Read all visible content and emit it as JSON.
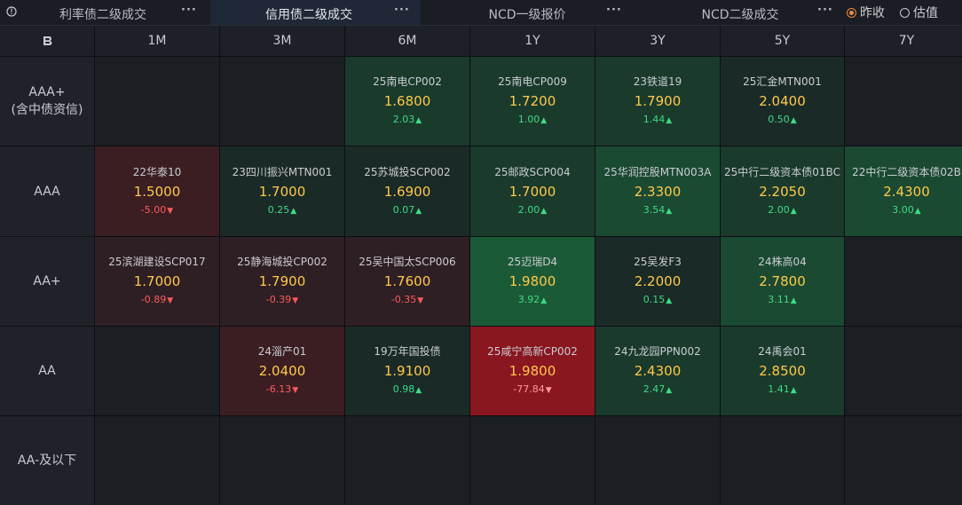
{
  "topbar": {
    "tabs": [
      {
        "label": "利率债二级成交",
        "more": "···"
      },
      {
        "label": "信用债二级成交",
        "more": "···"
      },
      {
        "label": "NCD一级报价",
        "more": "···"
      },
      {
        "label": "NCD二级成交",
        "more": "···"
      }
    ],
    "active_tab": 1,
    "radio": [
      {
        "label": "昨收",
        "checked": true
      },
      {
        "label": "估值",
        "checked": false
      }
    ]
  },
  "grid": {
    "corner_icon": "B",
    "columns": [
      "1M",
      "3M",
      "6M",
      "1Y",
      "3Y",
      "5Y",
      "7Y"
    ],
    "rows": [
      {
        "label_lines": [
          "AAA+",
          "(含中债资信)"
        ]
      },
      {
        "label_lines": [
          "AAA"
        ]
      },
      {
        "label_lines": [
          "AA+"
        ]
      },
      {
        "label_lines": [
          "AA"
        ]
      },
      {
        "label_lines": [
          "AA-及以下"
        ]
      }
    ],
    "cells": [
      [
        null,
        null,
        {
          "name": "25南电CP002",
          "price": "1.6800",
          "change": "2.03",
          "dir": "up",
          "tone": "c-g2"
        },
        {
          "name": "25南电CP009",
          "price": "1.7200",
          "change": "1.00",
          "dir": "up",
          "tone": "c-g2"
        },
        {
          "name": "23铁道19",
          "price": "1.7900",
          "change": "1.44",
          "dir": "up",
          "tone": "c-g2"
        },
        {
          "name": "25汇金MTN001",
          "price": "2.0400",
          "change": "0.50",
          "dir": "up",
          "tone": "c-g1"
        },
        null
      ],
      [
        {
          "name": "22华泰10",
          "price": "1.5000",
          "change": "-5.00",
          "dir": "down",
          "tone": "c-r2"
        },
        {
          "name": "23四川振兴MTN001",
          "price": "1.7000",
          "change": "0.25",
          "dir": "up",
          "tone": "c-g1"
        },
        {
          "name": "25苏城投SCP002",
          "price": "1.6900",
          "change": "0.07",
          "dir": "up",
          "tone": "c-g1"
        },
        {
          "name": "25邮政SCP004",
          "price": "1.7000",
          "change": "2.00",
          "dir": "up",
          "tone": "c-g2"
        },
        {
          "name": "25华润控股MTN003A",
          "price": "2.3300",
          "change": "3.54",
          "dir": "up",
          "tone": "c-g3"
        },
        {
          "name": "25中行二级资本债01BC",
          "price": "2.2050",
          "change": "2.00",
          "dir": "up",
          "tone": "c-g2"
        },
        {
          "name": "22中行二级资本债02B",
          "price": "2.4300",
          "change": "3.00",
          "dir": "up",
          "tone": "c-g3"
        }
      ],
      [
        {
          "name": "25滨湖建设SCP017",
          "price": "1.7000",
          "change": "-0.89",
          "dir": "down",
          "tone": "c-r1"
        },
        {
          "name": "25静海城投CP002",
          "price": "1.7900",
          "change": "-0.39",
          "dir": "down",
          "tone": "c-r1"
        },
        {
          "name": "25吴中国太SCP006",
          "price": "1.7600",
          "change": "-0.35",
          "dir": "down",
          "tone": "c-r1"
        },
        {
          "name": "25迈瑞D4",
          "price": "1.9800",
          "change": "3.92",
          "dir": "up",
          "tone": "c-g4"
        },
        {
          "name": "25吴发F3",
          "price": "2.2000",
          "change": "0.15",
          "dir": "up",
          "tone": "c-g1"
        },
        {
          "name": "24株高04",
          "price": "2.7800",
          "change": "3.11",
          "dir": "up",
          "tone": "c-g3"
        },
        null
      ],
      [
        null,
        {
          "name": "24淄产01",
          "price": "2.0400",
          "change": "-6.13",
          "dir": "down",
          "tone": "c-r2"
        },
        {
          "name": "19万年国投债",
          "price": "1.9100",
          "change": "0.98",
          "dir": "up",
          "tone": "c-g1"
        },
        {
          "name": "25咸宁高新CP002",
          "price": "1.9800",
          "change": "-77.84",
          "dir": "down",
          "tone": "c-r3"
        },
        {
          "name": "24九龙园PPN002",
          "price": "2.4300",
          "change": "2.47",
          "dir": "up",
          "tone": "c-g2"
        },
        {
          "name": "24禹会01",
          "price": "2.8500",
          "change": "1.41",
          "dir": "up",
          "tone": "c-g2"
        },
        null
      ],
      [
        null,
        null,
        null,
        null,
        null,
        null,
        null
      ]
    ]
  },
  "icons": {
    "info": "info-circle-icon",
    "more": "more-dots-icon",
    "up": "up-triangle-icon",
    "down": "down-triangle-icon",
    "logo": "brand-b-icon"
  },
  "colors": {
    "price": "#ffc94a",
    "up": "#3ddc84",
    "down": "#ff5b5b",
    "radio_accent": "#f08c3c",
    "active_tab_bg": "#1e2836"
  }
}
